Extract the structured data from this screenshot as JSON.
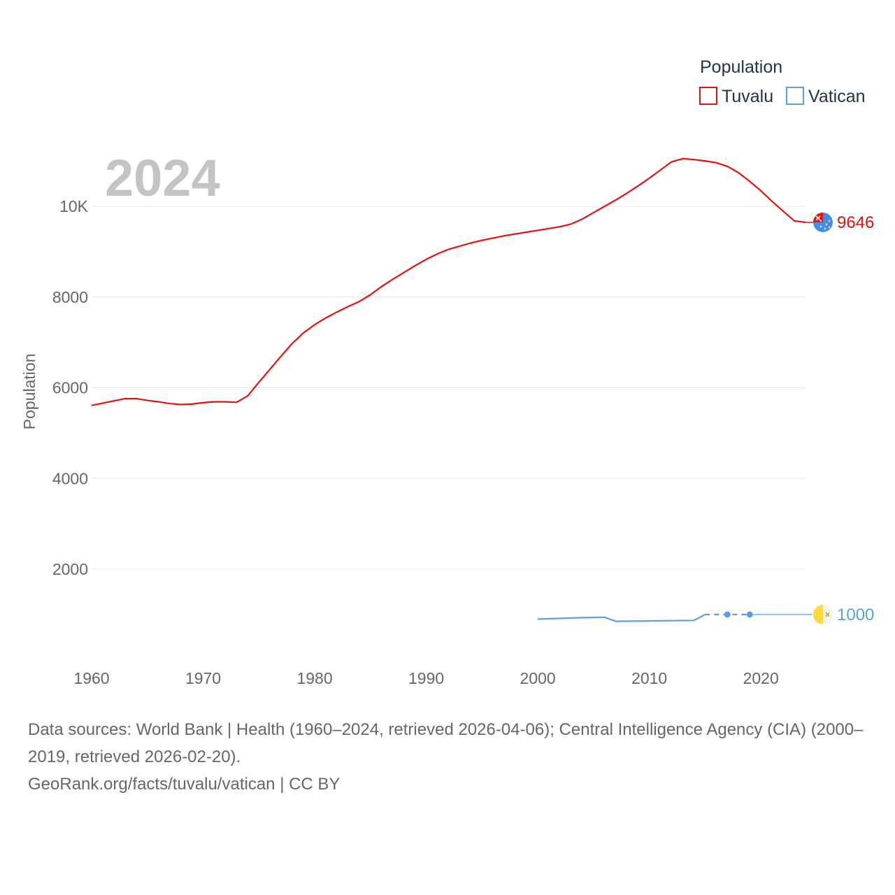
{
  "chart_data": {
    "type": "line",
    "current_year": "2024",
    "ylabel": "Population",
    "xlim": [
      1960,
      2024
    ],
    "ylim": [
      0,
      11000
    ],
    "x_ticks": [
      1960,
      1970,
      1980,
      1990,
      2000,
      2010,
      2020
    ],
    "y_ticks": [
      {
        "value": 2000,
        "label": "2000"
      },
      {
        "value": 4000,
        "label": "4000"
      },
      {
        "value": 6000,
        "label": "6000"
      },
      {
        "value": 8000,
        "label": "8000"
      },
      {
        "value": 10000,
        "label": "10K"
      }
    ],
    "legend_title": "Population",
    "legend_position": "top-right",
    "series": [
      {
        "name": "Tuvalu",
        "color": "#e8120c",
        "end_value": "9646",
        "flag_icon": "tuvalu-flag-icon",
        "x": [
          1960,
          1961,
          1962,
          1963,
          1964,
          1965,
          1966,
          1967,
          1968,
          1969,
          1970,
          1971,
          1972,
          1973,
          1974,
          1975,
          1976,
          1977,
          1978,
          1979,
          1980,
          1981,
          1982,
          1983,
          1984,
          1985,
          1986,
          1987,
          1988,
          1989,
          1990,
          1991,
          1992,
          1993,
          1994,
          1995,
          1996,
          1997,
          1998,
          1999,
          2000,
          2001,
          2002,
          2003,
          2004,
          2005,
          2006,
          2007,
          2008,
          2009,
          2010,
          2011,
          2012,
          2013,
          2014,
          2015,
          2016,
          2017,
          2018,
          2019,
          2020,
          2021,
          2022,
          2023,
          2024
        ],
        "values": [
          5610,
          5660,
          5710,
          5760,
          5760,
          5720,
          5690,
          5650,
          5630,
          5640,
          5670,
          5690,
          5690,
          5680,
          5820,
          6120,
          6410,
          6700,
          6980,
          7210,
          7390,
          7540,
          7670,
          7790,
          7900,
          8050,
          8230,
          8390,
          8540,
          8690,
          8830,
          8950,
          9050,
          9120,
          9190,
          9250,
          9300,
          9350,
          9390,
          9430,
          9470,
          9510,
          9550,
          9610,
          9720,
          9860,
          10000,
          10140,
          10290,
          10450,
          10620,
          10800,
          10980,
          11050,
          11030,
          11000,
          10960,
          10880,
          10740,
          10550,
          10340,
          10110,
          9890,
          9680,
          9646
        ]
      },
      {
        "name": "Vatican",
        "color": "#5a9fe3",
        "end_value": "1000",
        "flag_icon": "vatican-flag-icon",
        "x": [
          2000,
          2004,
          2006,
          2007,
          2014,
          2015
        ],
        "values": [
          900,
          930,
          940,
          850,
          870,
          1000
        ],
        "dashed_x": [
          2015,
          2017,
          2019
        ],
        "dashed_values": [
          1000,
          1000,
          1000
        ],
        "marker_x": [
          2017,
          2019
        ],
        "marker_values": [
          1000,
          1000
        ],
        "extend_to": 2024
      }
    ]
  },
  "source": {
    "line1": "Data sources: World Bank | Health (1960–2024, retrieved 2026-04-06); Central Intelligence Agency (CIA) (2000–2019, retrieved 2026-02-20).",
    "line2": "GeoRank.org/facts/tuvalu/vatican | CC BY"
  }
}
